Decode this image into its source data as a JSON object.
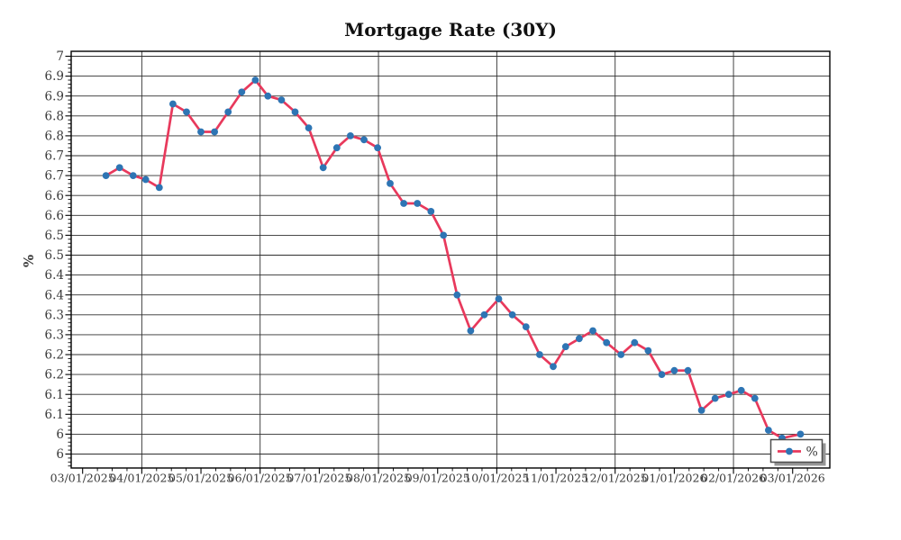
{
  "chart": {
    "title": "Mortgage Rate (30Y)"
  },
  "chart_data": {
    "type": "line",
    "title": "Mortgage Rate (30Y)",
    "xlabel": "",
    "ylabel": "%",
    "grid": true,
    "background": "#ffffff",
    "line_color": "#e8395c",
    "marker_color": "#2e75b4",
    "grid_color": "#2f2f2f",
    "spine_color": "#000000",
    "legend": {
      "label": "%",
      "position": "lower right",
      "shadow": true,
      "border_color": "#4d4d4d",
      "shadow_color": "#969696"
    },
    "ylim": [
      5.965,
      7.012
    ],
    "xlim": [
      "02/23/2025",
      "03/19/2026"
    ],
    "y_ticks": {
      "values": [
        7.0,
        6.95,
        6.9,
        6.85,
        6.8,
        6.75,
        6.7,
        6.65,
        6.6,
        6.55,
        6.5,
        6.45,
        6.4,
        6.35,
        6.3,
        6.25,
        6.2,
        6.15,
        6.1,
        6.05,
        6.0
      ],
      "labels": [
        "7",
        "6.9",
        "6.9",
        "6.8",
        "6.8",
        "6.7",
        "6.7",
        "6.6",
        "6.6",
        "6.5",
        "6.5",
        "6.4",
        "6.4",
        "6.3",
        "6.3",
        "6.2",
        "6.2",
        "6.1",
        "6.1",
        "6",
        "6"
      ]
    },
    "x_ticks": {
      "labels": [
        "03/01/2025",
        "04/01/2025",
        "05/01/2025",
        "06/01/2025",
        "07/01/2025",
        "08/01/2025",
        "09/01/2025",
        "10/01/2025",
        "11/01/2025",
        "12/01/2025",
        "01/01/2026",
        "02/01/2026",
        "03/01/2026"
      ],
      "gridlines_at": [
        "04/01/2025",
        "06/01/2025",
        "08/01/2025",
        "10/01/2025",
        "12/01/2025",
        "02/01/2026"
      ]
    },
    "series": [
      {
        "name": "%",
        "x": [
          "03/13/2025",
          "03/20/2025",
          "03/27/2025",
          "04/03/2025",
          "04/10/2025",
          "04/17/2025",
          "04/24/2025",
          "05/01/2025",
          "05/08/2025",
          "05/15/2025",
          "05/22/2025",
          "05/29/2025",
          "06/05/2025",
          "06/12/2025",
          "06/19/2025",
          "06/26/2025",
          "07/03/2025",
          "07/10/2025",
          "07/17/2025",
          "07/24/2025",
          "07/31/2025",
          "08/07/2025",
          "08/14/2025",
          "08/21/2025",
          "08/28/2025",
          "09/04/2025",
          "09/11/2025",
          "09/18/2025",
          "09/25/2025",
          "10/02/2025",
          "10/09/2025",
          "10/16/2025",
          "10/23/2025",
          "10/30/2025",
          "11/06/2025",
          "11/13/2025",
          "11/20/2025",
          "11/27/2025",
          "12/04/2025",
          "12/11/2025",
          "12/18/2025",
          "12/25/2025",
          "01/01/2026",
          "01/08/2026",
          "01/15/2026",
          "01/22/2026",
          "01/29/2026",
          "02/05/2026",
          "02/12/2026",
          "02/19/2026",
          "02/26/2026",
          "03/05/2026"
        ],
        "values": [
          6.7,
          6.72,
          6.7,
          6.69,
          6.67,
          6.88,
          6.86,
          6.81,
          6.81,
          6.86,
          6.91,
          6.94,
          6.9,
          6.89,
          6.86,
          6.82,
          6.72,
          6.77,
          6.8,
          6.79,
          6.77,
          6.68,
          6.63,
          6.63,
          6.61,
          6.55,
          6.4,
          6.31,
          6.35,
          6.39,
          6.35,
          6.32,
          6.25,
          6.22,
          6.27,
          6.29,
          6.31,
          6.28,
          6.25,
          6.28,
          6.26,
          6.2,
          6.21,
          6.21,
          6.11,
          6.14,
          6.15,
          6.16,
          6.14,
          6.06,
          6.04,
          6.05
        ]
      }
    ]
  }
}
